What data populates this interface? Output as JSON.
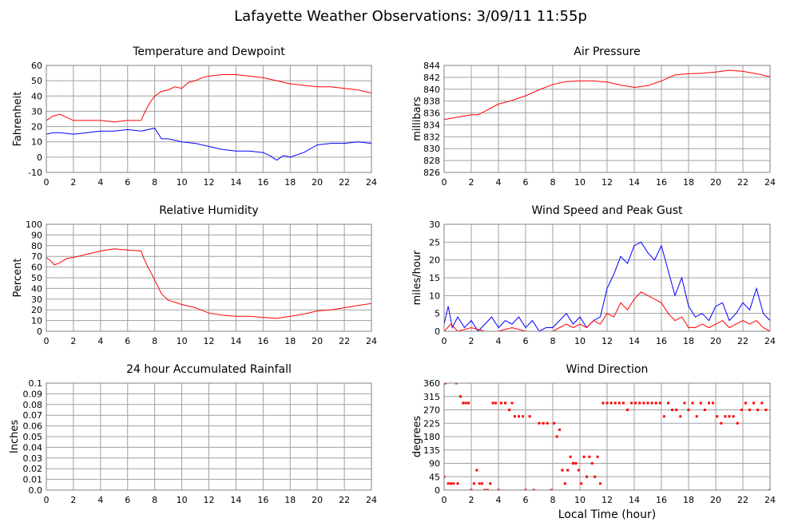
{
  "page": {
    "title": "Lafayette Weather Observations: 3/09/11 11:55p"
  },
  "colors": {
    "red": "#ff0000",
    "blue": "#0000ff",
    "grid": "#a0a0a0",
    "frame": "#808080"
  },
  "chart_data": [
    {
      "type": "line",
      "title": "Temperature and Dewpoint",
      "xlabel": "",
      "ylabel": "Fahrenheit",
      "xlim": [
        0,
        24
      ],
      "ylim": [
        -10,
        60
      ],
      "xticks": [
        0,
        2,
        4,
        6,
        8,
        10,
        12,
        14,
        16,
        18,
        20,
        22,
        24
      ],
      "yticks": [
        -10,
        0,
        10,
        20,
        30,
        40,
        50,
        60
      ],
      "grid": true,
      "series": [
        {
          "color": "#ff0000",
          "x": [
            0,
            0.5,
            1,
            1.5,
            2,
            3,
            4,
            5,
            6,
            7,
            7.3,
            7.6,
            8,
            8.5,
            9,
            9.5,
            10,
            10.5,
            11,
            11.5,
            12,
            13,
            14,
            15,
            16,
            17,
            18,
            19,
            20,
            21,
            22,
            23,
            24
          ],
          "y": [
            24,
            27,
            28,
            26,
            24,
            24,
            24,
            23,
            24,
            24,
            30,
            35,
            40,
            43,
            44,
            46,
            45,
            49,
            50,
            52,
            53,
            54,
            54,
            53,
            52,
            50,
            48,
            47,
            46,
            46,
            45,
            44,
            42
          ]
        },
        {
          "color": "#0000ff",
          "x": [
            0,
            0.5,
            1,
            2,
            3,
            4,
            5,
            6,
            7,
            7.5,
            8,
            8.5,
            9,
            10,
            11,
            12,
            13,
            14,
            15,
            16,
            16.5,
            17,
            17.5,
            18,
            19,
            20,
            21,
            22,
            23,
            24
          ],
          "y": [
            15,
            16,
            16,
            15,
            16,
            17,
            17,
            18,
            17,
            18,
            19,
            12,
            12,
            10,
            9,
            7,
            5,
            4,
            4,
            3,
            1,
            -2,
            1,
            0,
            3,
            8,
            9,
            9,
            10,
            9
          ]
        }
      ]
    },
    {
      "type": "line",
      "title": "Air Pressure",
      "xlabel": "",
      "ylabel": "millibars",
      "xlim": [
        0,
        24
      ],
      "ylim": [
        826,
        844
      ],
      "xticks": [
        0,
        2,
        4,
        6,
        8,
        10,
        12,
        14,
        16,
        18,
        20,
        22,
        24
      ],
      "yticks": [
        826,
        828,
        830,
        832,
        834,
        836,
        838,
        840,
        842,
        844
      ],
      "grid": true,
      "series": [
        {
          "color": "#ff0000",
          "x": [
            0,
            1,
            2,
            2.5,
            3,
            4,
            5,
            6,
            7,
            8,
            9,
            10,
            11,
            12,
            13,
            14,
            15,
            16,
            17,
            18,
            19,
            20,
            21,
            22,
            23,
            24
          ],
          "y": [
            834.9,
            835.3,
            835.7,
            835.7,
            836.3,
            837.5,
            838.1,
            838.9,
            839.9,
            840.8,
            841.3,
            841.4,
            841.4,
            841.2,
            840.7,
            840.3,
            840.6,
            841.4,
            842.4,
            842.6,
            842.7,
            842.9,
            843.2,
            843.0,
            842.6,
            842.1
          ]
        }
      ]
    },
    {
      "type": "line",
      "title": "Relative Humidity",
      "xlabel": "",
      "ylabel": "Percent",
      "xlim": [
        0,
        24
      ],
      "ylim": [
        0,
        100
      ],
      "xticks": [
        0,
        2,
        4,
        6,
        8,
        10,
        12,
        14,
        16,
        18,
        20,
        22,
        24
      ],
      "yticks": [
        0,
        10,
        20,
        30,
        40,
        50,
        60,
        70,
        80,
        90,
        100
      ],
      "grid": true,
      "series": [
        {
          "color": "#ff0000",
          "x": [
            0,
            0.3,
            0.6,
            1,
            1.5,
            2,
            3,
            4,
            5,
            6,
            7,
            7.2,
            7.5,
            8,
            8.5,
            9,
            10,
            11,
            12,
            13,
            14,
            15,
            16,
            17,
            18,
            19,
            20,
            21,
            22,
            23,
            24
          ],
          "y": [
            69,
            66,
            62,
            64,
            68,
            69,
            72,
            75,
            77,
            76,
            75,
            68,
            60,
            48,
            35,
            29,
            25,
            22,
            17,
            15,
            14,
            14,
            13,
            12,
            14,
            16,
            19,
            20,
            22,
            24,
            26
          ]
        }
      ]
    },
    {
      "type": "line",
      "title": "Wind Speed and Peak Gust",
      "xlabel": "",
      "ylabel": "miles/hour",
      "xlim": [
        0,
        24
      ],
      "ylim": [
        0,
        30
      ],
      "xticks": [
        0,
        2,
        4,
        6,
        8,
        10,
        12,
        14,
        16,
        18,
        20,
        22,
        24
      ],
      "yticks": [
        0,
        5,
        10,
        15,
        20,
        25,
        30
      ],
      "grid": true,
      "series": [
        {
          "color": "#0000ff",
          "x": [
            0,
            0.3,
            0.6,
            1,
            1.5,
            2,
            2.5,
            3,
            3.5,
            4,
            4.5,
            5,
            5.5,
            6,
            6.5,
            7,
            7.5,
            8,
            8.5,
            9,
            9.5,
            10,
            10.5,
            11,
            11.5,
            12,
            12.5,
            13,
            13.5,
            14,
            14.5,
            15,
            15.5,
            16,
            16.5,
            17,
            17.5,
            18,
            18.5,
            19,
            19.5,
            20,
            20.5,
            21,
            21.5,
            22,
            22.5,
            23,
            23.5,
            24
          ],
          "y": [
            2,
            7,
            1,
            4,
            1,
            3,
            0,
            2,
            4,
            1,
            3,
            2,
            4,
            1,
            3,
            0,
            1,
            1,
            3,
            5,
            2,
            4,
            1,
            3,
            4,
            12,
            16,
            21,
            19,
            24,
            25,
            22,
            20,
            24,
            17,
            10,
            15,
            7,
            4,
            5,
            3,
            7,
            8,
            3,
            5,
            8,
            6,
            12,
            5,
            3
          ]
        },
        {
          "color": "#ff0000",
          "x": [
            0,
            0.5,
            1,
            2,
            3,
            4,
            5,
            6,
            7,
            8,
            8.5,
            9,
            9.5,
            10,
            10.5,
            11,
            11.5,
            12,
            12.5,
            13,
            13.5,
            14,
            14.5,
            15,
            15.5,
            16,
            16.5,
            17,
            17.5,
            18,
            18.5,
            19,
            19.5,
            20,
            20.5,
            21,
            21.5,
            22,
            22.5,
            23,
            23.5,
            24
          ],
          "y": [
            0,
            2,
            0,
            1,
            0,
            0,
            1,
            0,
            0,
            0,
            1,
            2,
            1,
            2,
            1,
            3,
            2,
            5,
            4,
            8,
            6,
            9,
            11,
            10,
            9,
            8,
            5,
            3,
            4,
            1,
            1,
            2,
            1,
            2,
            3,
            1,
            2,
            3,
            2,
            3,
            1,
            0
          ]
        }
      ]
    },
    {
      "type": "line",
      "title": "24 hour Accumulated Rainfall",
      "xlabel": "",
      "ylabel": "Inches",
      "xlim": [
        0,
        24
      ],
      "ylim": [
        0,
        0.1
      ],
      "xticks": [
        0,
        2,
        4,
        6,
        8,
        10,
        12,
        14,
        16,
        18,
        20,
        22,
        24
      ],
      "yticks": [
        0.0,
        0.01,
        0.02,
        0.03,
        0.04,
        0.05,
        0.06,
        0.07,
        0.08,
        0.09,
        0.1
      ],
      "ytick_labels": [
        "0.0",
        "0.01",
        "0.02",
        "0.03",
        "0.04",
        "0.05",
        "0.06",
        "0.07",
        "0.08",
        "0.09",
        "0.1"
      ],
      "grid": true,
      "series": [
        {
          "color": "#ff0000",
          "x": [
            0,
            24
          ],
          "y": [
            0,
            0
          ]
        }
      ]
    },
    {
      "type": "scatter",
      "title": "Wind Direction",
      "xlabel": "Local Time (hour)",
      "ylabel": "degrees",
      "xlim": [
        0,
        24
      ],
      "ylim": [
        0,
        360
      ],
      "xticks": [
        0,
        2,
        4,
        6,
        8,
        10,
        12,
        14,
        16,
        18,
        20,
        22,
        24
      ],
      "yticks": [
        0,
        45,
        90,
        135,
        180,
        225,
        270,
        315,
        360
      ],
      "grid": true,
      "series": [
        {
          "color": "#ff0000",
          "x": [
            0,
            0.1,
            0.3,
            0.5,
            0.7,
            0.9,
            1.0,
            1.2,
            1.4,
            1.6,
            1.8,
            2.0,
            2.2,
            2.4,
            2.6,
            2.8,
            3.0,
            3.2,
            3.4,
            3.6,
            3.8,
            4.0,
            4.2,
            4.5,
            4.8,
            5.0,
            5.2,
            5.5,
            5.8,
            6.0,
            6.3,
            6.6,
            7.0,
            7.3,
            7.6,
            7.9,
            8.1,
            8.3,
            8.5,
            8.7,
            8.9,
            9.1,
            9.3,
            9.5,
            9.7,
            9.9,
            10.1,
            10.3,
            10.5,
            10.7,
            10.9,
            11.1,
            11.3,
            11.5,
            11.7,
            12.0,
            12.3,
            12.6,
            12.9,
            13.2,
            13.5,
            13.8,
            14.1,
            14.4,
            14.7,
            15.0,
            15.3,
            15.6,
            15.9,
            16.2,
            16.5,
            16.8,
            17.1,
            17.4,
            17.7,
            18.0,
            18.3,
            18.6,
            18.9,
            19.2,
            19.5,
            19.8,
            20.1,
            20.4,
            20.7,
            21.0,
            21.3,
            21.6,
            21.9,
            22.2,
            22.5,
            22.8,
            23.1,
            23.4,
            23.7,
            24.0
          ],
          "y": [
            45,
            360,
            22,
            22,
            22,
            360,
            22,
            315,
            293,
            293,
            293,
            0,
            22,
            67,
            22,
            22,
            0,
            0,
            22,
            293,
            293,
            0,
            293,
            293,
            270,
            293,
            248,
            248,
            248,
            0,
            248,
            0,
            225,
            225,
            225,
            0,
            225,
            180,
            203,
            67,
            22,
            67,
            112,
            90,
            90,
            67,
            22,
            112,
            45,
            112,
            90,
            45,
            112,
            22,
            293,
            293,
            293,
            293,
            293,
            293,
            270,
            293,
            293,
            293,
            293,
            293,
            293,
            293,
            293,
            248,
            293,
            270,
            270,
            248,
            293,
            270,
            293,
            248,
            293,
            270,
            293,
            293,
            248,
            225,
            248,
            248,
            248,
            225,
            270,
            293,
            270,
            293,
            270,
            293,
            270,
            0
          ]
        }
      ]
    }
  ]
}
